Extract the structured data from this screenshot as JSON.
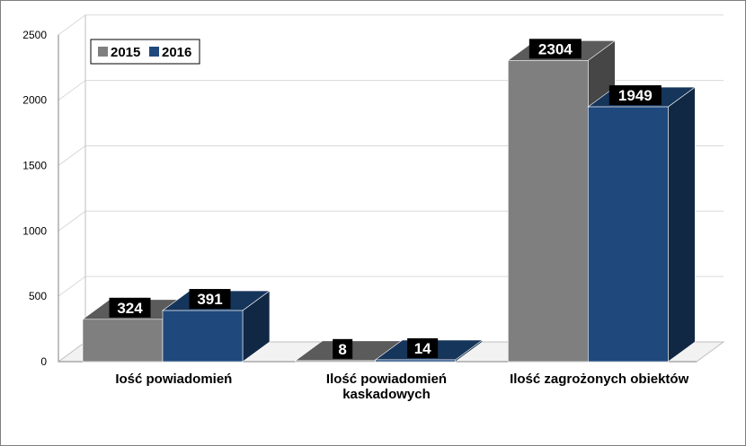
{
  "chart_data": {
    "type": "bar",
    "categories": [
      [
        "Iość powiadomień"
      ],
      [
        "Ilość powiadomień",
        "kaskadowych"
      ],
      [
        "Ilość zagrożonych obiektów"
      ]
    ],
    "series": [
      {
        "name": "2015",
        "values": [
          324,
          8,
          2304
        ],
        "color": "#7f7f7f"
      },
      {
        "name": "2016",
        "values": [
          391,
          14,
          1949
        ],
        "color": "#1f497d"
      }
    ],
    "yticks": [
      0,
      500,
      1000,
      1500,
      2000,
      2500
    ],
    "ylim": [
      0,
      2500
    ],
    "legend_position": "top-left",
    "grid": true,
    "bar_style": "3d"
  }
}
